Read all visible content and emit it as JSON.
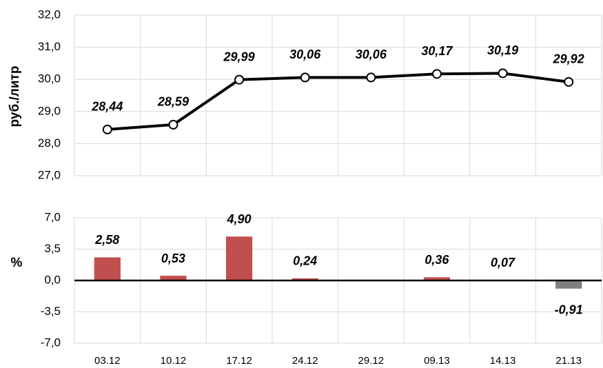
{
  "chart_data": [
    {
      "type": "line",
      "y_label": "руб./литр",
      "categories": [
        "03.12",
        "10.12",
        "17.12",
        "24.12",
        "29.12",
        "09.13",
        "14.13",
        "21.13"
      ],
      "values": [
        28.44,
        28.59,
        29.99,
        30.06,
        30.06,
        30.17,
        30.19,
        29.92
      ],
      "value_labels": [
        "28,44",
        "28,59",
        "29,99",
        "30,06",
        "30,06",
        "30,17",
        "30,19",
        "29,92"
      ],
      "color": "#000000",
      "marker_fill": "#ffffff",
      "ylim": [
        27,
        32
      ],
      "yticks": [
        {
          "value": 27,
          "label": "27,0"
        },
        {
          "value": 28,
          "label": "28,0"
        },
        {
          "value": 29,
          "label": "29,0"
        },
        {
          "value": 30,
          "label": "30,0"
        },
        {
          "value": 31,
          "label": "31,0"
        },
        {
          "value": 32,
          "label": "32,0"
        }
      ],
      "grid": true
    },
    {
      "type": "bar",
      "y_label": "%",
      "categories": [
        "03.12",
        "10.12",
        "17.12",
        "24.12",
        "29.12",
        "09.13",
        "14.13",
        "21.13"
      ],
      "values": [
        2.58,
        0.53,
        4.9,
        0.24,
        null,
        0.36,
        0.07,
        -0.91
      ],
      "value_labels": [
        "2,58",
        "0,53",
        "4,90",
        "0,24",
        null,
        "0,36",
        "0,07",
        "-0,91"
      ],
      "color": "#c0504d",
      "negative_color": "#808080",
      "ylim": [
        -7,
        7
      ],
      "yticks": [
        {
          "value": -7,
          "label": "-7,0"
        },
        {
          "value": -3.5,
          "label": "-3,5"
        },
        {
          "value": 0,
          "label": "0,0"
        },
        {
          "value": 3.5,
          "label": "3,5"
        },
        {
          "value": 7,
          "label": "7,0"
        }
      ],
      "grid": true
    }
  ]
}
